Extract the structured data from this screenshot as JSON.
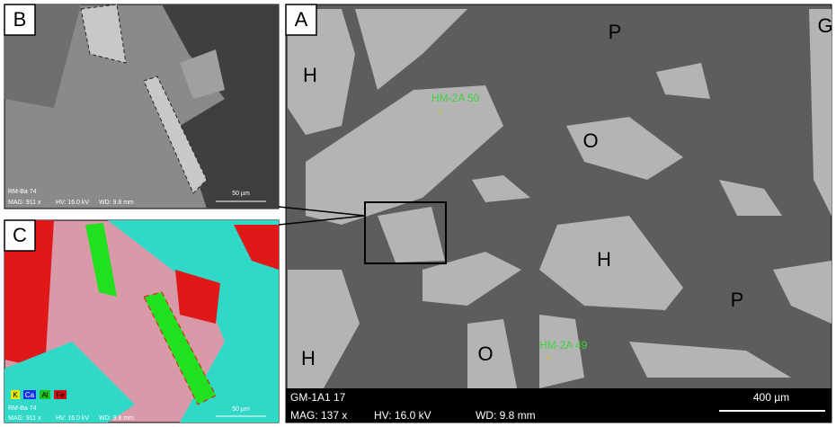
{
  "panels": {
    "a": {
      "label": "A",
      "phase_labels": [
        "H",
        "H",
        "H",
        "P",
        "P",
        "O",
        "O",
        "G"
      ],
      "spots": [
        "HM-2A 50",
        "HM-2A 49"
      ],
      "info": {
        "sample": "GM-1A1 17",
        "mag": "MAG: 137 x",
        "hv": "HV: 16.0 kV",
        "wd": "WD: 9.8 mm"
      },
      "scale_bar": "400 µm"
    },
    "b": {
      "label": "B",
      "info": {
        "sample": "RM-Ba 74",
        "mag": "MAG: 911 x",
        "hv": "HV: 16.0 kV",
        "wd": "WD: 9.8 mm"
      },
      "scale_bar": "50 µm"
    },
    "c": {
      "label": "C",
      "legend": [
        "K",
        "Ca",
        "Al",
        "Fe"
      ],
      "info": {
        "sample": "RM-Ba 74",
        "mag": "MAG: 911 x",
        "hv": "HV: 16.0 kV",
        "wd": "WD: 9.8 mm"
      },
      "scale_bar": "50 µm"
    }
  }
}
